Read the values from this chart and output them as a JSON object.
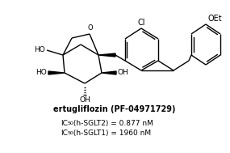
{
  "title_bold": "ertugliflozin (PF-04971729)",
  "ic50_sglt2_text": " (h-SGLT2) = 0.877 nM",
  "ic50_sglt1_text": " (h-SGLT1) = 1960 nM",
  "background_color": "#ffffff",
  "text_color": "#000000",
  "figsize": [
    2.85,
    1.89
  ],
  "dpi": 100
}
